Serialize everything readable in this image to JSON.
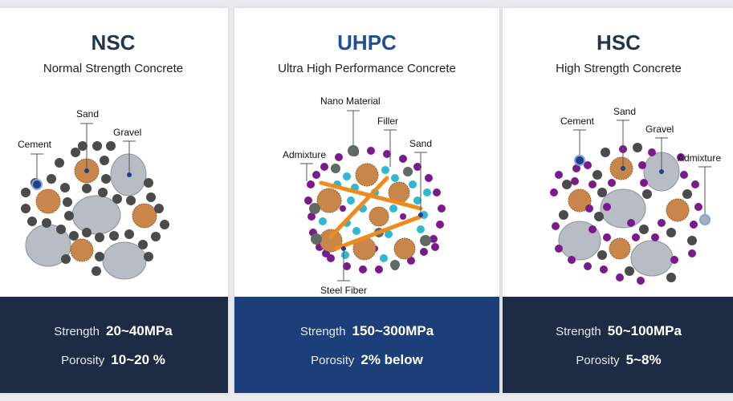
{
  "cards": [
    {
      "abbr": "NSC",
      "full": "Normal Strength Concrete",
      "labels": {
        "cement": "Cement",
        "sand": "Sand",
        "gravel": "Gravel"
      },
      "strength_label": "Strength",
      "strength_value": "20~40MPa",
      "porosity_label": "Porosity",
      "porosity_value": "10~20 %"
    },
    {
      "abbr": "UHPC",
      "full": "Ultra High Performance Concrete",
      "labels": {
        "nano": "Nano Material",
        "filler": "Filler",
        "sand": "Sand",
        "admixture": "Admixture",
        "steel_fiber": "Steel Fiber"
      },
      "strength_label": "Strength",
      "strength_value": "150~300MPa",
      "porosity_label": "Porosity",
      "porosity_value": "2% below"
    },
    {
      "abbr": "HSC",
      "full": "High Strength Concrete",
      "labels": {
        "cement": "Cement",
        "sand": "Sand",
        "gravel": "Gravel",
        "admixture": "Admixture"
      },
      "strength_label": "Strength",
      "strength_value": "50~100MPa",
      "porosity_label": "Porosity",
      "porosity_value": "5~8%"
    }
  ],
  "colors": {
    "navy": "#1d2b45",
    "blue": "#1c3f7a",
    "gravel": "#b7bcc4",
    "sand": "#c9864a",
    "cement": "#4a4a4a",
    "admixture": "#7a1a8c",
    "filler": "#2fb7d4",
    "fiber": "#f08a1c"
  }
}
